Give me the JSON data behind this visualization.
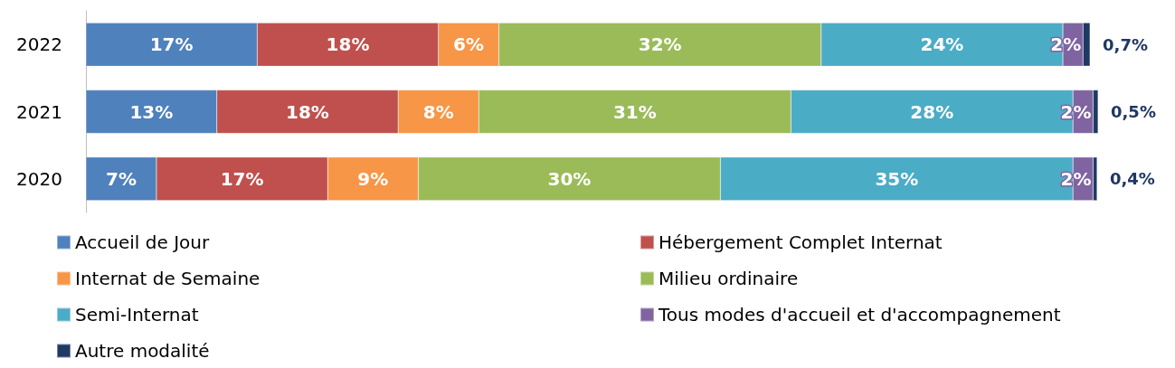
{
  "chart_data": {
    "type": "bar",
    "orientation": "horizontal",
    "stacked": true,
    "legend": "bottom",
    "categories": [
      "2022",
      "2021",
      "2020"
    ],
    "series": [
      {
        "name": "Accueil de Jour",
        "color": "#4f81bd",
        "values": [
          17,
          13,
          7
        ],
        "value_labels": [
          "17%",
          "13%",
          "7%"
        ]
      },
      {
        "name": "Hébergement Complet Internat",
        "color": "#c0504d",
        "values": [
          18,
          18,
          17
        ],
        "value_labels": [
          "18%",
          "18%",
          "17%"
        ]
      },
      {
        "name": "Internat de Semaine",
        "color": "#f79646",
        "values": [
          6,
          8,
          9
        ],
        "value_labels": [
          "6%",
          "8%",
          "9%"
        ]
      },
      {
        "name": "Milieu ordinaire",
        "color": "#9bbb59",
        "values": [
          32,
          31,
          30
        ],
        "value_labels": [
          "32%",
          "31%",
          "30%"
        ]
      },
      {
        "name": "Semi-Internat",
        "color": "#4bacc6",
        "values": [
          24,
          28,
          35
        ],
        "value_labels": [
          "24%",
          "28%",
          "35%"
        ]
      },
      {
        "name": "Tous modes d'accueil et d'accompagnement",
        "color": "#8064a2",
        "values": [
          2,
          2,
          2
        ],
        "value_labels": [
          "2%",
          "2%",
          "2%"
        ]
      },
      {
        "name": "Autre modalité",
        "color": "#1f3864",
        "values": [
          0.7,
          0.5,
          0.4
        ],
        "value_labels": [
          "0,7%",
          "0,5%",
          "0,4%"
        ]
      }
    ]
  }
}
